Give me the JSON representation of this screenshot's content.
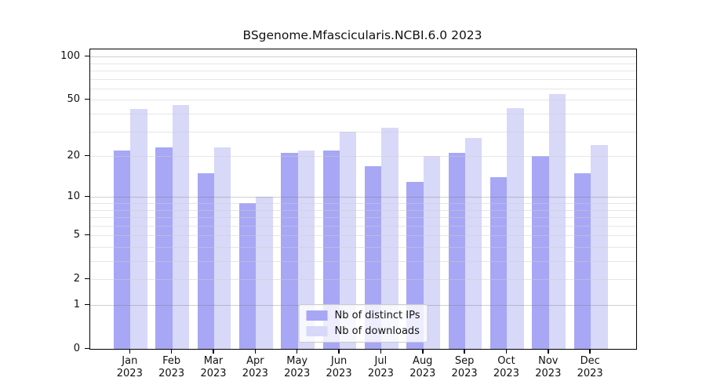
{
  "chart_data": {
    "type": "bar",
    "title": "BSgenome.Mfascicularis.NCBI.6.0 2023",
    "categories": [
      "Jan",
      "Feb",
      "Mar",
      "Apr",
      "May",
      "Jun",
      "Jul",
      "Aug",
      "Sep",
      "Oct",
      "Nov",
      "Dec"
    ],
    "category_year": "2023",
    "series": [
      {
        "name": "Nb of distinct IPs",
        "color": "#a7a7f5",
        "values": [
          22,
          23,
          15,
          9,
          21,
          22,
          17,
          13,
          21,
          14,
          20,
          15
        ]
      },
      {
        "name": "Nb of downloads",
        "color": "#d8d8f8",
        "values": [
          43,
          46,
          23,
          10,
          22,
          30,
          32,
          20,
          27,
          44,
          55,
          24
        ]
      }
    ],
    "yscale": "log1p",
    "ylim": [
      0,
      112
    ],
    "ytick_labels": [
      0,
      1,
      2,
      5,
      10,
      20,
      50,
      100
    ],
    "grid_major": [
      1,
      10,
      100
    ],
    "grid_minor": [
      2,
      3,
      4,
      5,
      6,
      7,
      8,
      9,
      20,
      30,
      40,
      50,
      60,
      70,
      80,
      90
    ],
    "grid": true,
    "legend_position": "bottom-center"
  }
}
